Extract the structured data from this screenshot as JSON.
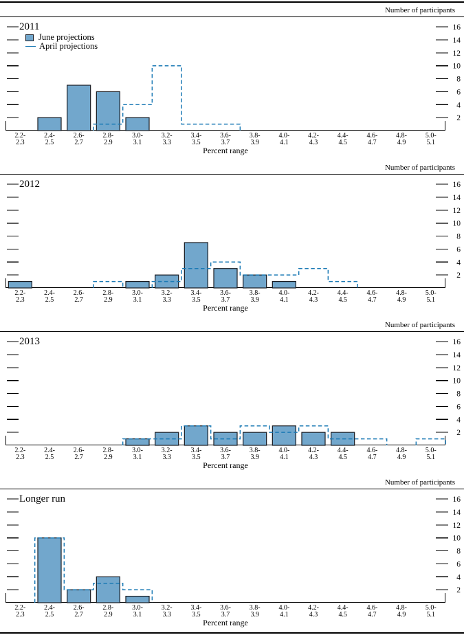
{
  "chart_data": {
    "type": "bar",
    "description": "Distribution of participants' projections, histogram panels with June bars and April dashed step lines",
    "categories": [
      "2.2-2.3",
      "2.4-2.5",
      "2.6-2.7",
      "2.8-2.9",
      "3.0-3.1",
      "3.2-3.3",
      "3.4-3.5",
      "3.6-3.7",
      "3.8-3.9",
      "4.0-4.1",
      "4.2-4.3",
      "4.4-4.5",
      "4.6-4.7",
      "4.8-4.9",
      "5.0-5.1"
    ],
    "xlabel": "Percent range",
    "ylabel": "Number of participants",
    "yticks": [
      2,
      4,
      6,
      8,
      10,
      12,
      14,
      16
    ],
    "ylim": [
      0,
      17.5
    ],
    "grid": false,
    "legend_position": "top-left-first-panel",
    "legend": [
      {
        "name": "June projections",
        "style": "filled-bar"
      },
      {
        "name": "April projections",
        "style": "dashed-line"
      }
    ],
    "colors": {
      "bar_fill": "#72a7cc",
      "bar_stroke": "#181a20",
      "april_line": "#1b7ab5",
      "axis": "#000000"
    },
    "panels": [
      {
        "title": "2011",
        "series": [
          {
            "name": "June projections",
            "values": [
              0,
              2,
              7,
              6,
              2,
              0,
              0,
              0,
              0,
              0,
              0,
              0,
              0,
              0,
              0
            ]
          },
          {
            "name": "April projections",
            "values": [
              0,
              0,
              0,
              1,
              4,
              10,
              1,
              1,
              0,
              0,
              0,
              0,
              0,
              0,
              0
            ]
          }
        ]
      },
      {
        "title": "2012",
        "series": [
          {
            "name": "June projections",
            "values": [
              1,
              0,
              0,
              0,
              1,
              2,
              7,
              3,
              2,
              1,
              0,
              0,
              0,
              0,
              0
            ]
          },
          {
            "name": "April projections",
            "values": [
              0,
              0,
              0,
              1,
              0,
              1,
              3,
              4,
              2,
              2,
              3,
              1,
              0,
              0,
              0
            ]
          }
        ]
      },
      {
        "title": "2013",
        "series": [
          {
            "name": "June projections",
            "values": [
              0,
              0,
              0,
              0,
              1,
              2,
              3,
              2,
              2,
              3,
              2,
              2,
              0,
              0,
              0
            ]
          },
          {
            "name": "April projections",
            "values": [
              0,
              0,
              0,
              0,
              1,
              1,
              3,
              1,
              3,
              2,
              3,
              1,
              1,
              0,
              1
            ]
          }
        ]
      },
      {
        "title": "Longer run",
        "series": [
          {
            "name": "June projections",
            "values": [
              0,
              10,
              2,
              4,
              1,
              0,
              0,
              0,
              0,
              0,
              0,
              0,
              0,
              0,
              0
            ]
          },
          {
            "name": "April projections",
            "values": [
              0,
              10,
              2,
              3,
              2,
              0,
              0,
              0,
              0,
              0,
              0,
              0,
              0,
              0,
              0
            ]
          }
        ]
      }
    ]
  }
}
